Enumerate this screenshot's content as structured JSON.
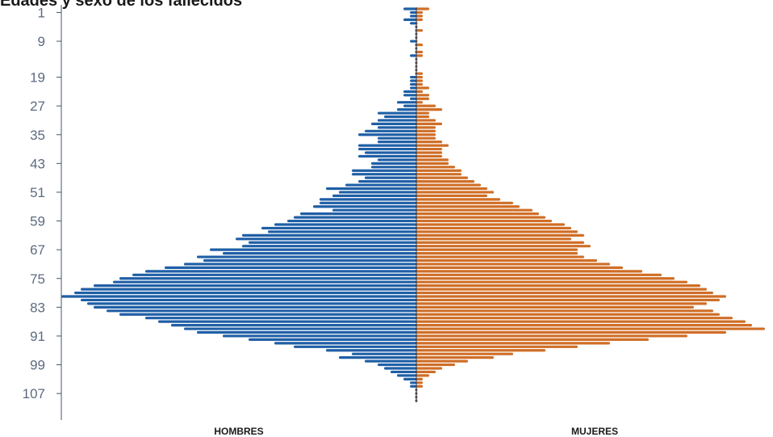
{
  "chart_data": {
    "type": "bar",
    "title": "Edades y sexo de los fallecidos",
    "orientation": "horizontal-pyramid",
    "y_ticks": [
      "1",
      "9",
      "19",
      "27",
      "35",
      "43",
      "51",
      "59",
      "67",
      "75",
      "83",
      "91",
      "99",
      "107"
    ],
    "series": [
      {
        "name": "HOMBRES",
        "color": "#1f5fa6"
      },
      {
        "name": "MUJERES",
        "color": "#cf6e26"
      }
    ],
    "ages_start": 0,
    "ages_end": 109,
    "hombres": [
      2,
      1,
      1,
      2,
      1,
      0,
      0,
      0,
      0,
      1,
      0,
      0,
      0,
      1,
      0,
      0,
      0,
      0,
      0,
      1,
      1,
      1,
      1,
      2,
      2,
      1,
      3,
      2,
      3,
      6,
      5,
      6,
      7,
      6,
      8,
      9,
      6,
      6,
      9,
      9,
      8,
      9,
      6,
      7,
      7,
      10,
      10,
      8,
      9,
      11,
      14,
      12,
      13,
      15,
      15,
      16,
      13,
      18,
      19,
      20,
      22,
      24,
      23,
      27,
      28,
      26,
      27,
      32,
      30,
      34,
      33,
      36,
      39,
      42,
      44,
      46,
      47,
      50,
      52,
      53,
      55,
      52,
      51,
      50,
      48,
      46,
      42,
      40,
      38,
      36,
      34,
      30,
      26,
      22,
      19,
      14,
      10,
      12,
      8,
      6,
      5,
      4,
      3,
      2,
      1,
      1,
      0,
      0,
      0,
      0
    ],
    "mujeres": [
      2,
      1,
      1,
      1,
      0,
      0,
      1,
      0,
      0,
      0,
      1,
      0,
      1,
      1,
      0,
      0,
      0,
      0,
      1,
      1,
      1,
      1,
      2,
      1,
      2,
      2,
      1,
      3,
      4,
      2,
      2,
      3,
      4,
      3,
      3,
      3,
      3,
      4,
      5,
      4,
      4,
      4,
      5,
      5,
      6,
      7,
      7,
      8,
      9,
      10,
      11,
      12,
      11,
      13,
      15,
      16,
      18,
      19,
      20,
      21,
      23,
      24,
      25,
      26,
      24,
      26,
      27,
      25,
      25,
      26,
      28,
      30,
      32,
      35,
      38,
      40,
      42,
      44,
      45,
      46,
      48,
      47,
      45,
      43,
      46,
      47,
      49,
      51,
      52,
      54,
      48,
      42,
      36,
      30,
      25,
      20,
      15,
      12,
      8,
      6,
      4,
      3,
      2,
      1,
      1,
      1,
      0,
      0,
      0,
      0
    ],
    "xlabel_left": "HOMBRES",
    "xlabel_right": "MUJERES",
    "grid": false,
    "legend": "none"
  }
}
